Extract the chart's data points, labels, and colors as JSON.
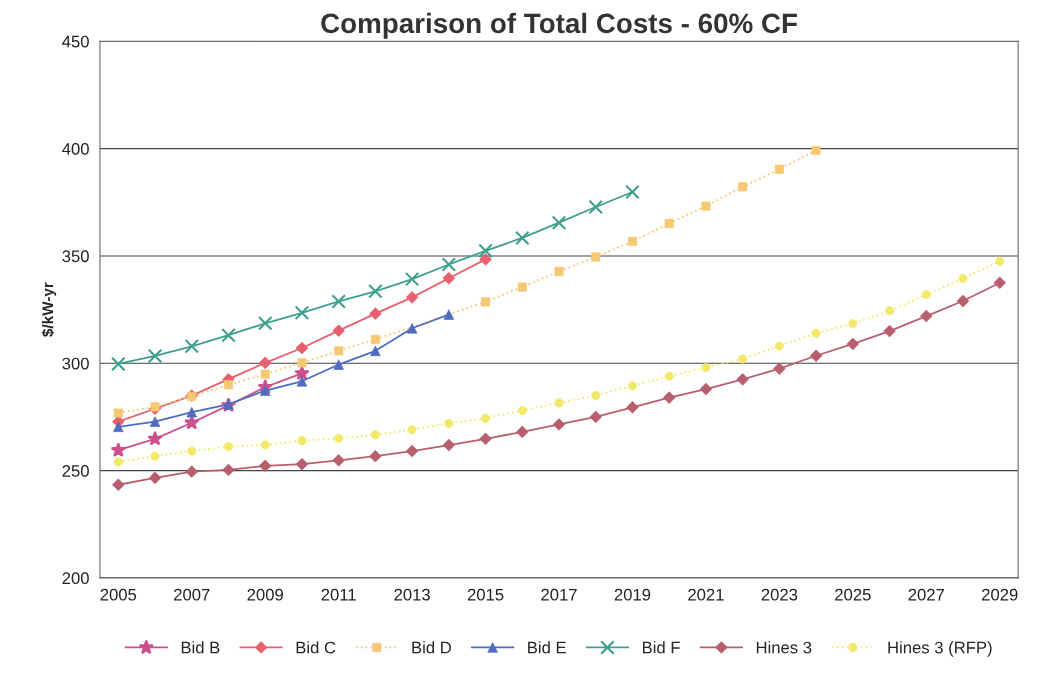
{
  "chart_data": {
    "type": "line",
    "title": "Comparison of Total Costs - 60% CF",
    "ylabel": "$/kW-yr",
    "x": [
      2005,
      2006,
      2007,
      2008,
      2009,
      2010,
      2011,
      2012,
      2013,
      2014,
      2015,
      2016,
      2017,
      2018,
      2019,
      2020,
      2021,
      2022,
      2023,
      2024,
      2025,
      2026,
      2027,
      2028,
      2029
    ],
    "series": [
      {
        "name": "Bid B",
        "color": "#cc4f8e",
        "marker": "star",
        "line_style": "solid",
        "x": [
          2005,
          2006,
          2007,
          2008,
          2009,
          2010
        ],
        "values": [
          259.5,
          264.8,
          272.3,
          280.4,
          288.9,
          295.3
        ]
      },
      {
        "name": "Bid C",
        "color": "#e8606e",
        "marker": "diamond",
        "line_style": "solid",
        "x": [
          2005,
          2006,
          2007,
          2008,
          2009,
          2010,
          2011,
          2012,
          2013,
          2014,
          2015
        ],
        "values": [
          272.8,
          278.8,
          284.9,
          292.6,
          300.2,
          307.1,
          315.2,
          323.1,
          330.7,
          339.6,
          348.4
        ]
      },
      {
        "name": "Bid D",
        "color": "#f6c873",
        "marker": "square",
        "line_style": "dotted",
        "x": [
          2005,
          2006,
          2007,
          2008,
          2009,
          2010,
          2011,
          2012,
          2013,
          2014,
          2015,
          2016,
          2017,
          2018,
          2019,
          2020,
          2021,
          2022,
          2023,
          2024
        ],
        "values": [
          276.8,
          279.7,
          284.6,
          290,
          294.9,
          300.2,
          305.8,
          311.1,
          null,
          null,
          328.6,
          335.5,
          342.8,
          349.5,
          356.8,
          365.1,
          373.2,
          382.2,
          390.4,
          399.2
        ]
      },
      {
        "name": "Bid E",
        "color": "#4f6cbf",
        "marker": "triangle",
        "line_style": "solid",
        "x": [
          2005,
          2006,
          2007,
          2008,
          2009,
          2010,
          2011,
          2012,
          2013,
          2014
        ],
        "values": [
          270.4,
          272.8,
          277.2,
          280.9,
          287.3,
          291.6,
          299.4,
          305.8,
          316.3,
          322.7
        ]
      },
      {
        "name": "Bid F",
        "color": "#3f9f8f",
        "marker": "cross",
        "line_style": "solid",
        "x": [
          2005,
          2006,
          2007,
          2008,
          2009,
          2010,
          2011,
          2012,
          2013,
          2014,
          2015,
          2016,
          2017,
          2018,
          2019
        ],
        "values": [
          299.7,
          303.4,
          307.9,
          313.1,
          318.6,
          323.5,
          328.8,
          333.5,
          339.2,
          346,
          352.4,
          358.4,
          365.5,
          372.8,
          379.8
        ]
      },
      {
        "name": "Hines 3",
        "color": "#b85f6e",
        "marker": "diamond",
        "line_style": "solid",
        "values": [
          243.4,
          246.6,
          249.5,
          250.3,
          252.2,
          253,
          254.8,
          256.7,
          259.1,
          261.9,
          264.8,
          268,
          271.5,
          275,
          279.5,
          284,
          288,
          292.5,
          297.5,
          303.5,
          309,
          315,
          322,
          329,
          337.5
        ]
      },
      {
        "name": "Hines 3 (RFP)",
        "color": "#f2e96a",
        "marker": "circle",
        "line_style": "dotted",
        "values": [
          254,
          256.7,
          259.1,
          261.2,
          262,
          264,
          265,
          266.7,
          269.1,
          272,
          274.4,
          278,
          281.5,
          285,
          289.5,
          294,
          298,
          302,
          308,
          314,
          318.5,
          324.5,
          332,
          339.5,
          347.5
        ]
      }
    ],
    "xlim": [
      2004.5,
      2029.5
    ],
    "xticks": [
      2005,
      2007,
      2009,
      2011,
      2013,
      2015,
      2017,
      2019,
      2021,
      2023,
      2025,
      2027,
      2029
    ],
    "ylim": [
      200,
      450
    ],
    "yticks": [
      200,
      250,
      300,
      350,
      400,
      450
    ],
    "grid": "y",
    "legend": "bottom"
  }
}
